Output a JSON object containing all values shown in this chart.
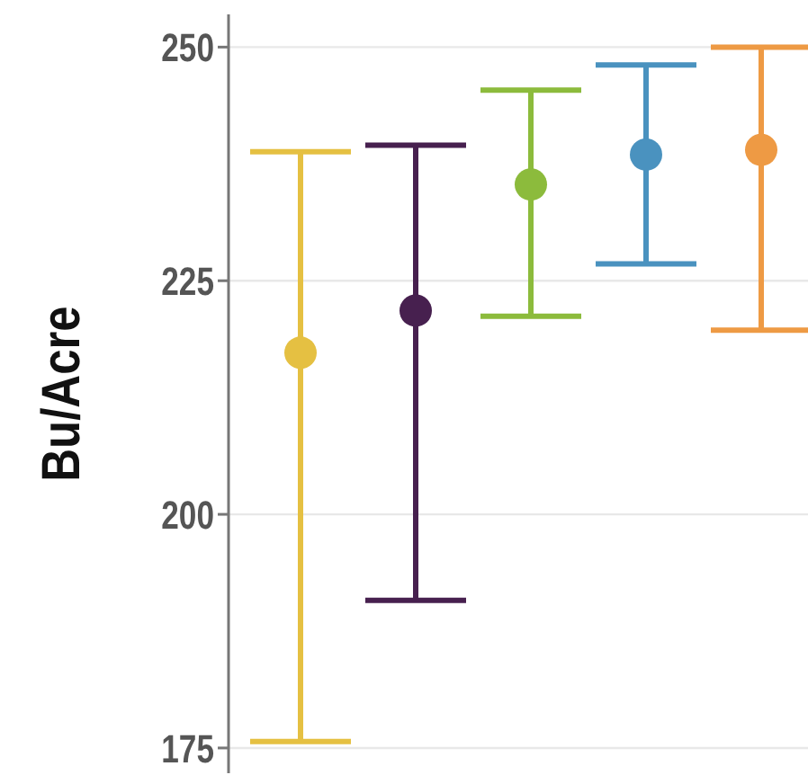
{
  "chart_data": {
    "type": "scatter",
    "ylabel": "Bu/Acre",
    "categories": [
      null,
      null,
      null,
      null,
      null
    ],
    "values": [
      217.3,
      221.8,
      235.3,
      238.5,
      239
    ],
    "errors": [
      [
        175.7,
        238.8
      ],
      [
        190.8,
        239.5
      ],
      [
        221.2,
        245.4
      ],
      [
        226.8,
        248.1
      ],
      [
        219.7,
        250
      ]
    ],
    "colors": [
      "#e5c042",
      "#47204f",
      "#8cbb3c",
      "#4a92bf",
      "#ee9a44"
    ],
    "marker": "circle",
    "ylim": [
      172.3,
      253.5
    ],
    "yticks": [
      175,
      200,
      225,
      250
    ],
    "grid": "y"
  }
}
